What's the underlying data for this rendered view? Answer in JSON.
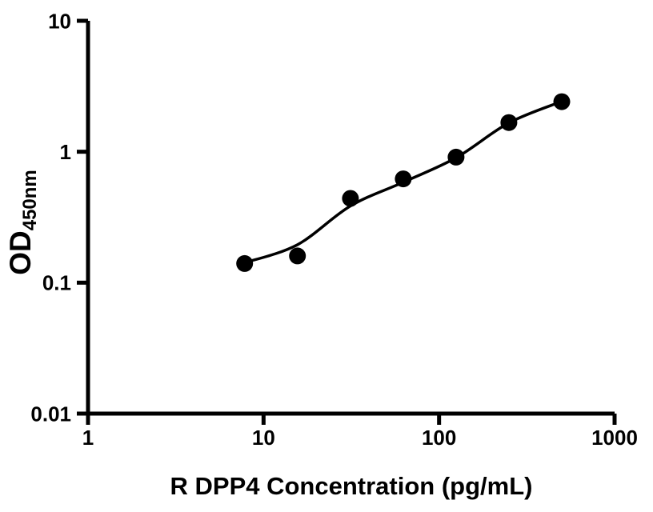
{
  "chart_data": {
    "type": "scatter",
    "title": "",
    "xlabel": "R DPP4 Concentration (pg/mL)",
    "ylabel": "OD",
    "ylabel_subscript": "450nm",
    "x_scale": "log",
    "y_scale": "log",
    "xlim": [
      1,
      1000
    ],
    "ylim": [
      0.01,
      10
    ],
    "x_ticks": [
      1,
      10,
      100,
      1000
    ],
    "x_tick_labels": [
      "1",
      "10",
      "100",
      "1000"
    ],
    "y_ticks": [
      0.01,
      0.1,
      1,
      10
    ],
    "y_tick_labels": [
      "0.01",
      "0.1",
      "1",
      "10"
    ],
    "grid": false,
    "legend": "none",
    "points": [
      {
        "x": 7.8,
        "y": 0.14
      },
      {
        "x": 15.6,
        "y": 0.16
      },
      {
        "x": 31.25,
        "y": 0.44
      },
      {
        "x": 62.5,
        "y": 0.62
      },
      {
        "x": 125,
        "y": 0.91
      },
      {
        "x": 250,
        "y": 1.67
      },
      {
        "x": 500,
        "y": 2.41
      }
    ],
    "fit_curve": [
      {
        "x": 7.8,
        "y": 0.142
      },
      {
        "x": 15.6,
        "y": 0.195
      },
      {
        "x": 31.25,
        "y": 0.385
      },
      {
        "x": 62.5,
        "y": 0.585
      },
      {
        "x": 125,
        "y": 0.9
      },
      {
        "x": 250,
        "y": 1.66
      },
      {
        "x": 500,
        "y": 2.42
      }
    ],
    "marker_color": "#000000",
    "line_color": "#000000",
    "axis_color": "#000000",
    "background": "#ffffff"
  }
}
